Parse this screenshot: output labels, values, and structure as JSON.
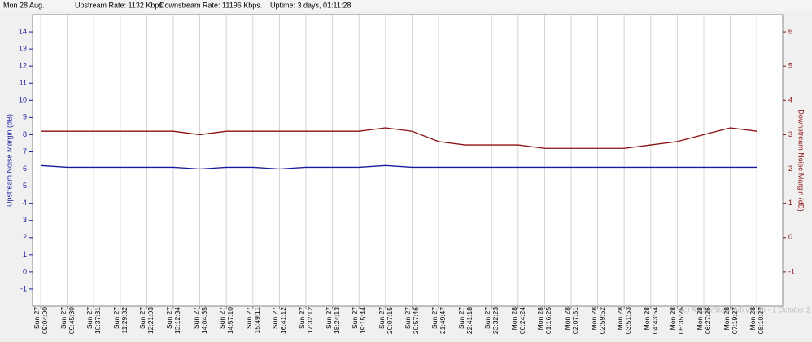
{
  "header": {
    "date": "Mon 28 Aug.",
    "upstream_rate": "Upstream Rate: 1132 Kbps.",
    "downstream_rate": "Downstream Rate: 11196 Kbps.",
    "uptime": "Uptime: 3 days, 01:11:28"
  },
  "chart_data": {
    "type": "line",
    "y_label": "Upstream Noise Margin (dB)",
    "y2_label": "Downstream Noise Margin (dB)",
    "annotation": "(c) RouterStatsHub v 1.9b - 1 October 2",
    "categories": [
      "Sun 27\n09:04:00",
      "Sun 27\n09:45:30",
      "Sun 27\n10:37:31",
      "Sun 27\n11:29:32",
      "Sun 27\n12:21:03",
      "Sun 27\n13:12:34",
      "Sun 27\n14:04:35",
      "Sun 27\n14:57:10",
      "Sun 27\n15:49:11",
      "Sun 27\n16:41:12",
      "Sun 27\n17:32:12",
      "Sun 27\n18:24:13",
      "Sun 27\n19:15:44",
      "Sun 27\n20:07:15",
      "Sun 27\n20:57:46",
      "Sun 27\n21:49:47",
      "Sun 27\n22:41:18",
      "Sun 27\n23:32:23",
      "Mon 28\n00:24:24",
      "Mon 28\n01:16:25",
      "Mon 28\n02:07:51",
      "Mon 28\n02:59:52",
      "Mon 28\n03:51:53",
      "Mon 28\n04:43:54",
      "Mon 28\n05:35:25",
      "Mon 28\n06:27:26",
      "Mon 28\n07:19:27",
      "Mon 28\n08:10:27"
    ],
    "series": [
      {
        "name": "Upstream Noise Margin",
        "color": "#1a1aa0",
        "values": [
          6.2,
          6.1,
          6.1,
          6.1,
          6.1,
          6.1,
          6.0,
          6.1,
          6.1,
          6.0,
          6.1,
          6.1,
          6.1,
          6.2,
          6.1,
          6.1,
          6.1,
          6.1,
          6.1,
          6.1,
          6.1,
          6.1,
          6.1,
          6.1,
          6.1,
          6.1,
          6.1,
          6.1
        ]
      },
      {
        "name": "Downstream Noise Margin",
        "color": "#8b1010",
        "axis": "y2",
        "values": [
          3.1,
          3.1,
          3.1,
          3.1,
          3.1,
          3.1,
          3.0,
          3.1,
          3.1,
          3.1,
          3.1,
          3.1,
          3.1,
          3.2,
          3.1,
          2.8,
          2.7,
          2.7,
          2.7,
          2.6,
          2.6,
          2.6,
          2.6,
          2.7,
          2.8,
          3.0,
          3.2,
          3.1
        ]
      }
    ],
    "ylim": [
      -2,
      15
    ],
    "yticks": [
      -1,
      0,
      1,
      2,
      3,
      4,
      5,
      6,
      7,
      8,
      9,
      10,
      11,
      12,
      13,
      14
    ],
    "y2lim": [
      -2,
      6.5
    ],
    "y2ticks": [
      -1,
      0,
      1,
      2,
      3,
      4,
      5,
      6
    ],
    "grid": true
  }
}
